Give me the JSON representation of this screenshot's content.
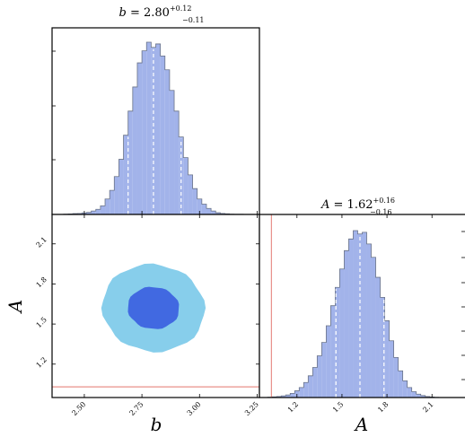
{
  "chart_data": [
    {
      "type": "histogram",
      "panel": "marginal-b",
      "title": {
        "param": "b",
        "value": "2.80",
        "plus": "+0.12",
        "minus": "−0.11"
      },
      "x": [
        2.42,
        2.44,
        2.46,
        2.48,
        2.5,
        2.52,
        2.54,
        2.56,
        2.58,
        2.6,
        2.62,
        2.64,
        2.66,
        2.68,
        2.7,
        2.72,
        2.74,
        2.76,
        2.78,
        2.8,
        2.82,
        2.84,
        2.86,
        2.88,
        2.9,
        2.92,
        2.94,
        2.96,
        2.98,
        3.0,
        3.02,
        3.04,
        3.06,
        3.08,
        3.1,
        3.12,
        3.14,
        3.16,
        3.18
      ],
      "values": [
        0.002,
        0.003,
        0.005,
        0.006,
        0.009,
        0.012,
        0.02,
        0.03,
        0.05,
        0.09,
        0.14,
        0.22,
        0.32,
        0.46,
        0.6,
        0.74,
        0.88,
        0.95,
        1.0,
        0.97,
        0.99,
        0.92,
        0.84,
        0.72,
        0.6,
        0.45,
        0.33,
        0.23,
        0.15,
        0.09,
        0.06,
        0.035,
        0.02,
        0.01,
        0.006,
        0.004,
        0.002,
        0.001,
        0.001
      ],
      "quantile_lines": [
        2.69,
        2.8,
        2.92
      ],
      "xlim": [
        2.36,
        3.26
      ]
    },
    {
      "type": "contour",
      "panel": "joint-b-A",
      "xlabel": "b",
      "ylabel": "A",
      "xticks": [
        "2.50",
        "2.75",
        "3.00",
        "3.25"
      ],
      "yticks": [
        "1.2",
        "1.5",
        "1.8",
        "2.1"
      ],
      "xlim": [
        2.36,
        3.26
      ],
      "ylim": [
        0.95,
        2.32
      ],
      "center": [
        2.8,
        1.62
      ],
      "levels": [
        {
          "level": "inner",
          "half_width_x": 0.11,
          "half_width_y": 0.16,
          "color": "#4169E1"
        },
        {
          "level": "outer",
          "half_width_x": 0.22,
          "half_width_y": 0.33,
          "color": "#87CEEB"
        }
      ],
      "reference_line_y": 1.03
    },
    {
      "type": "histogram",
      "panel": "marginal-A",
      "title": {
        "param": "A",
        "value": "1.62",
        "plus": "+0.16",
        "minus": "−0.16"
      },
      "xlabel": "A",
      "xticks": [
        "1.2",
        "1.5",
        "1.8",
        "2.1"
      ],
      "xlim": [
        0.95,
        2.32
      ],
      "x": [
        1.02,
        1.05,
        1.08,
        1.11,
        1.14,
        1.17,
        1.2,
        1.23,
        1.26,
        1.29,
        1.32,
        1.35,
        1.38,
        1.41,
        1.44,
        1.47,
        1.5,
        1.53,
        1.56,
        1.59,
        1.62,
        1.65,
        1.68,
        1.71,
        1.74,
        1.77,
        1.8,
        1.83,
        1.86,
        1.89,
        1.92,
        1.95,
        1.98,
        2.01,
        2.04,
        2.07,
        2.1,
        2.13
      ],
      "values": [
        0.002,
        0.004,
        0.006,
        0.01,
        0.015,
        0.025,
        0.04,
        0.06,
        0.09,
        0.13,
        0.18,
        0.25,
        0.33,
        0.43,
        0.55,
        0.66,
        0.77,
        0.88,
        0.95,
        1.0,
        0.98,
        0.99,
        0.92,
        0.84,
        0.72,
        0.6,
        0.46,
        0.34,
        0.24,
        0.16,
        0.1,
        0.06,
        0.035,
        0.02,
        0.012,
        0.006,
        0.003,
        0.001
      ],
      "quantile_lines": [
        1.46,
        1.62,
        1.78
      ],
      "reference_line_x": 1.03
    }
  ],
  "colors": {
    "histogram_fill": "#A2B3EA",
    "histogram_edge": "#6a7388",
    "reference_line": "#E8908A",
    "quantile_line": "#ffffff",
    "contour_inner": "#4169E1",
    "contour_outer": "#87CEEB"
  }
}
